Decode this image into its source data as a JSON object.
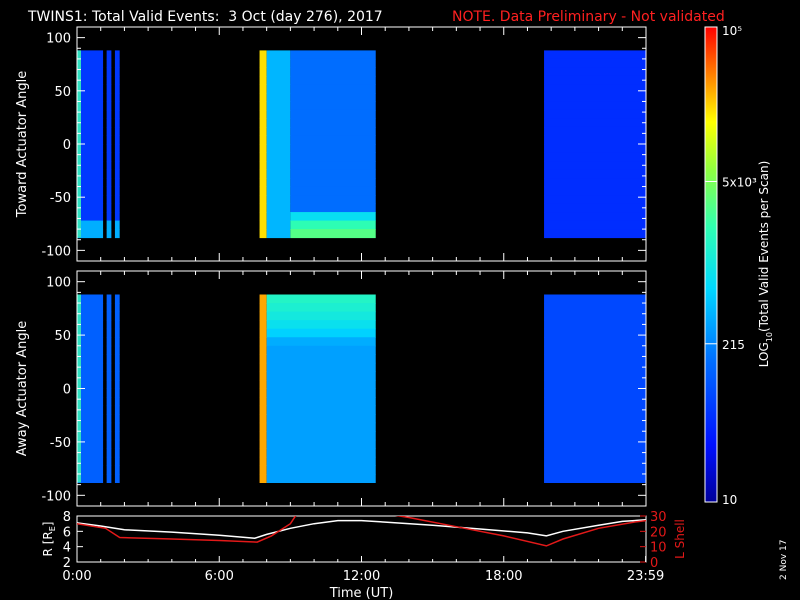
{
  "header": {
    "title": "TWINS1: Total Valid Events:  3 Oct (day 276), 2017",
    "note": "NOTE. Data Preliminary - Not validated"
  },
  "colors": {
    "note": "#ff2020",
    "aux_red": "#e31919",
    "aux_white": "#ffffff"
  },
  "colorbar": {
    "label": "LOG10(Total Valid Events per Scan)",
    "label_main": "LOG",
    "label_sub": "10",
    "label_rest": "(Total Valid Events per Scan)",
    "tick_labels": [
      "10",
      "215",
      "5x10³",
      "10⁵"
    ],
    "scale": "log",
    "min": 10,
    "max": 100000,
    "ticks": [
      10,
      215,
      5000,
      100000
    ]
  },
  "datestamp": "2 Nov 17",
  "chart_data": [
    {
      "type": "heatmap",
      "panel": "toward",
      "ylabel": "Toward Actuator Angle",
      "ylim": [
        -110,
        110
      ],
      "yticks": [
        100,
        50,
        0,
        -50,
        -100
      ],
      "ytick_labels": [
        "100",
        "50",
        "0",
        "-50",
        "-100"
      ],
      "xlim_hours": [
        0,
        24
      ],
      "angle_range": [
        -88,
        88
      ],
      "data_intervals_hours": [
        [
          0.0,
          1.1
        ],
        [
          1.25,
          1.45
        ],
        [
          1.6,
          1.8
        ],
        [
          7.7,
          12.6
        ],
        [
          12.8,
          12.9
        ],
        [
          19.7,
          24.0
        ]
      ],
      "regions": [
        {
          "t": [
            0.0,
            1.8
          ],
          "events": 60,
          "note": "low counts, enhanced near -85"
        },
        {
          "t": [
            7.7,
            8.0
          ],
          "events": 20000,
          "note": "yellow band"
        },
        {
          "t": [
            8.0,
            9.0
          ],
          "events": 400
        },
        {
          "t": [
            9.0,
            12.6
          ],
          "events": 150,
          "low_angle_enhancement": 3000
        },
        {
          "t": [
            19.7,
            24.0
          ],
          "events": 50
        }
      ]
    },
    {
      "type": "heatmap",
      "panel": "away",
      "ylabel": "Away Actuator Angle",
      "ylim": [
        -110,
        110
      ],
      "yticks": [
        100,
        50,
        0,
        -50,
        -100
      ],
      "ytick_labels": [
        "100",
        "50",
        "0",
        "-50",
        "-100"
      ],
      "xlim_hours": [
        0,
        24
      ],
      "angle_range": [
        -88,
        88
      ],
      "data_intervals_hours": [
        [
          0.0,
          1.1
        ],
        [
          1.25,
          1.45
        ],
        [
          1.6,
          1.8
        ],
        [
          7.7,
          12.6
        ],
        [
          12.8,
          12.9
        ],
        [
          19.7,
          24.0
        ]
      ],
      "regions": [
        {
          "t": [
            0.0,
            1.8
          ],
          "events": 120
        },
        {
          "t": [
            7.7,
            8.0
          ],
          "events": 30000,
          "note": "yellow-orange band"
        },
        {
          "t": [
            8.0,
            12.6
          ],
          "events": 300,
          "high_angle_enhancement": 1500
        },
        {
          "t": [
            19.7,
            24.0
          ],
          "events": 80
        }
      ]
    },
    {
      "type": "line",
      "panel": "orbit",
      "xlabel": "Time (UT)",
      "xticks_hours": [
        0,
        6,
        12,
        18,
        23.983
      ],
      "xtick_labels": [
        "0:00",
        "6:00",
        "12:00",
        "18:00",
        "23:59"
      ],
      "ylabel_left": "R [RE]",
      "ylabel_left_main": "R [R",
      "ylabel_left_sub": "E",
      "ylabel_left_end": "]",
      "ylim_left": [
        2,
        8
      ],
      "yticks_left": [
        2,
        4,
        6,
        8
      ],
      "ytick_labels_left": [
        "2",
        "4",
        "6",
        "8"
      ],
      "ylabel_right": "L Shell",
      "ylim_right": [
        0,
        30
      ],
      "yticks_right": [
        0,
        10,
        20,
        30
      ],
      "ytick_labels_right": [
        "0",
        "10",
        "20",
        "30"
      ],
      "series": [
        {
          "name": "R [RE]",
          "axis": "left",
          "color": "#ffffff",
          "x": [
            0,
            1.0,
            2,
            4,
            6,
            7.5,
            8,
            9,
            10,
            11,
            12,
            13,
            15,
            17,
            19,
            19.8,
            20.5,
            22,
            23,
            24
          ],
          "y": [
            7.1,
            6.7,
            6.2,
            5.9,
            5.5,
            5.1,
            5.6,
            6.4,
            7.0,
            7.4,
            7.4,
            7.2,
            6.8,
            6.3,
            5.8,
            5.4,
            6.0,
            6.8,
            7.3,
            7.5
          ]
        },
        {
          "name": "L Shell",
          "axis": "right",
          "color": "#e31919",
          "x": [
            0,
            1.2,
            1.8,
            4,
            6,
            7.6,
            8.2,
            9.0,
            9.3,
            12.8,
            14,
            16,
            18,
            19.8,
            20.5,
            22,
            23.5,
            24
          ],
          "y": [
            25,
            22,
            16,
            15,
            14,
            13,
            17,
            25,
            32,
            32,
            29,
            23,
            17,
            10.5,
            15,
            22,
            26,
            27
          ]
        }
      ]
    }
  ]
}
